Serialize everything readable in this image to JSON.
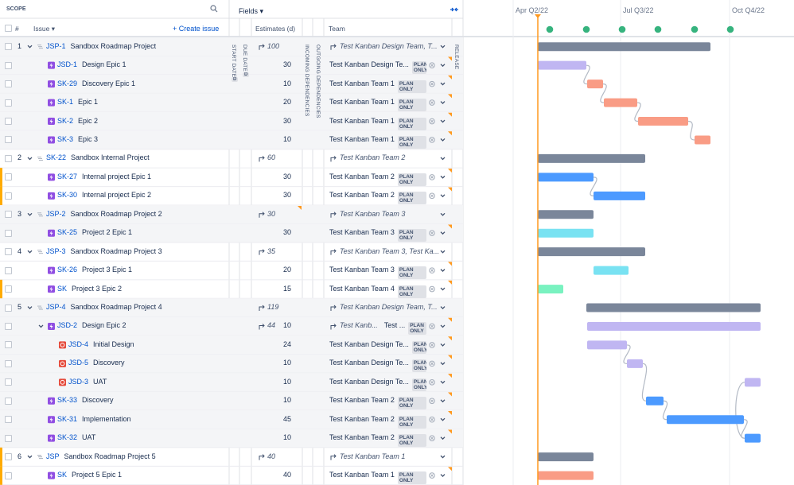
{
  "header": {
    "scope": "SCOPE",
    "fields": "Fields",
    "hash": "#",
    "issue": "Issue",
    "create_issue": "Create issue"
  },
  "columns": {
    "start_date": "START DATE",
    "due_date": "DUE DATE",
    "date_badge": "D",
    "estimates": "Estimates (d)",
    "incoming": "INCOMING DEPENDENCIES",
    "outgoing": "OUTGOING DEPENDENCIES",
    "team": "Team",
    "release": "RELEASE"
  },
  "timeline": [
    "Apr Q2/22",
    "Jul Q3/22",
    "Oct Q4/22"
  ],
  "rows": [
    {
      "num": "1",
      "key": "JSP-1",
      "summary": "Sandbox Roadmap Project",
      "rollup": 100,
      "team_rollup": "Test Kanban Design Team, T..."
    },
    {
      "key": "JSD-1",
      "summary": "Design Epic 1",
      "estimate": 30,
      "team": "Test Kanban Design Te...",
      "badge": "PLAN ONLY"
    },
    {
      "key": "SK-29",
      "summary": "Discovery Epic 1",
      "estimate": 10,
      "team": "Test Kanban Team 1",
      "badge": "PLAN ONLY"
    },
    {
      "key": "SK-1",
      "summary": "Epic 1",
      "estimate": 20,
      "team": "Test Kanban Team 1",
      "badge": "PLAN ONLY"
    },
    {
      "key": "SK-2",
      "summary": "Epic 2",
      "estimate": 30,
      "team": "Test Kanban Team 1",
      "badge": "PLAN ONLY"
    },
    {
      "key": "SK-3",
      "summary": "Epic 3",
      "estimate": 10,
      "team": "Test Kanban Team 1",
      "badge": "PLAN ONLY"
    },
    {
      "num": "2",
      "key": "SK-22",
      "summary": "Sandbox Internal Project",
      "rollup": 60,
      "team_rollup": "Test Kanban Team 2"
    },
    {
      "key": "SK-27",
      "summary": "Internal project Epic 1",
      "estimate": 30,
      "team": "Test Kanban Team 2",
      "badge": "PLAN ONLY"
    },
    {
      "key": "SK-30",
      "summary": "Internal project Epic 2",
      "estimate": 30,
      "team": "Test Kanban Team 2",
      "badge": "PLAN ONLY"
    },
    {
      "num": "3",
      "key": "JSP-2",
      "summary": "Sandbox Roadmap Project 2",
      "rollup": 30,
      "team_rollup": "Test Kanban Team 3"
    },
    {
      "key": "SK-25",
      "summary": "Project 2 Epic 1",
      "estimate": 30,
      "team": "Test Kanban Team 3",
      "badge": "PLAN ONLY"
    },
    {
      "num": "4",
      "key": "JSP-3",
      "summary": "Sandbox Roadmap Project 3",
      "rollup": 35,
      "team_rollup": "Test Kanban Team 3, Test Ka..."
    },
    {
      "key": "SK-26",
      "summary": "Project 3 Epic 1",
      "estimate": 20,
      "team": "Test Kanban Team 3",
      "badge": "PLAN ONLY"
    },
    {
      "key": "SK",
      "summary": "Project 3 Epic 2",
      "estimate": 15,
      "team": "Test Kanban Team 4",
      "badge": "PLAN ONLY"
    },
    {
      "num": "5",
      "key": "JSP-4",
      "summary": "Sandbox Roadmap Project 4",
      "rollup": 119,
      "team_rollup": "Test Kanban Design Team, T..."
    },
    {
      "key": "JSD-2",
      "summary": "Design Epic 2",
      "rollup": 44,
      "estimate": 10,
      "team_rollup": "Test Kanb...",
      "team": "Test ...",
      "badge": "PLAN ONLY"
    },
    {
      "key": "JSD-4",
      "summary": "Initial Design",
      "estimate": 24,
      "team": "Test Kanban Design Te...",
      "badge": "PLAN ONLY"
    },
    {
      "key": "JSD-5",
      "summary": "Discovery",
      "estimate": 10,
      "team": "Test Kanban Design Te...",
      "badge": "PLAN ONLY"
    },
    {
      "key": "JSD-3",
      "summary": "UAT",
      "estimate": 10,
      "team": "Test Kanban Design Te...",
      "badge": "PLAN ONLY"
    },
    {
      "key": "SK-33",
      "summary": "Discovery",
      "estimate": 10,
      "team": "Test Kanban Team 2",
      "badge": "PLAN ONLY"
    },
    {
      "key": "SK-31",
      "summary": "Implementation",
      "estimate": 45,
      "team": "Test Kanban Team 2",
      "badge": "PLAN ONLY"
    },
    {
      "key": "SK-32",
      "summary": "UAT",
      "estimate": 10,
      "team": "Test Kanban Team 2",
      "badge": "PLAN ONLY"
    },
    {
      "num": "6",
      "key": "JSP",
      "summary": "Sandbox Roadmap Project 5",
      "rollup": 40,
      "team_rollup": "Test Kanban Team 1"
    },
    {
      "key": "SK",
      "summary": "Project 5 Epic 1",
      "estimate": 40,
      "team": "Test Kanban Team 1",
      "badge": "PLAN ONLY"
    }
  ]
}
